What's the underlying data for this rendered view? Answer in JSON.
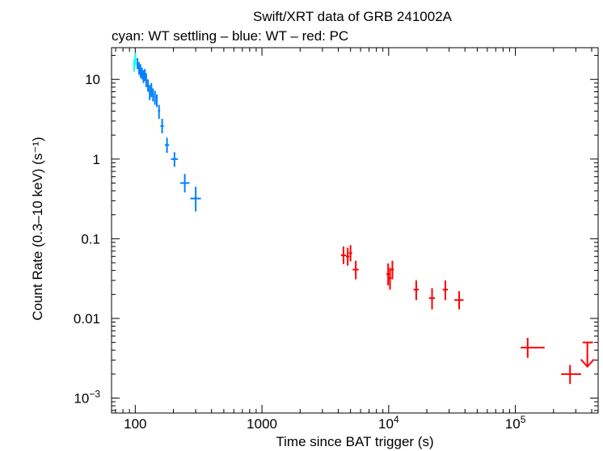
{
  "chart_data": {
    "type": "scatter",
    "title": "Swift/XRT data of GRB 241002A",
    "subtitle": "cyan: WT settling – blue: WT – red: PC",
    "xlabel": "Time since BAT trigger (s)",
    "ylabel": "Count Rate (0.3–10 keV) (s⁻¹)",
    "xscale": "log",
    "yscale": "log",
    "xlim": [
      65,
      450000
    ],
    "ylim": [
      0.00065,
      25
    ],
    "x_ticks": [
      {
        "value": 100,
        "label": "100"
      },
      {
        "value": 1000,
        "label": "1000"
      },
      {
        "value": 10000,
        "label": "10",
        "sup": "4"
      },
      {
        "value": 100000,
        "label": "10",
        "sup": "5"
      }
    ],
    "y_ticks": [
      {
        "value": 10,
        "label": "10"
      },
      {
        "value": 1,
        "label": "1"
      },
      {
        "value": 0.1,
        "label": "0.1"
      },
      {
        "value": 0.01,
        "label": "0.01"
      },
      {
        "value": 0.001,
        "label": "10",
        "sup": "−3"
      }
    ],
    "series": [
      {
        "name": "WT settling",
        "color": "#00ffff",
        "points": [
          {
            "x": 98,
            "y": 15,
            "xerr": [
              1.5,
              1.5
            ],
            "yerr": [
              2.5,
              3
            ]
          },
          {
            "x": 100,
            "y": 18,
            "xerr": [
              1.5,
              1.5
            ],
            "yerr": [
              3,
              3.5
            ]
          }
        ]
      },
      {
        "name": "WT",
        "color": "#0080ff",
        "points": [
          {
            "x": 104,
            "y": 16,
            "xerr": [
              1.5,
              1.5
            ],
            "yerr": [
              2.5,
              2.5
            ]
          },
          {
            "x": 107,
            "y": 14,
            "xerr": [
              1.5,
              1.5
            ],
            "yerr": [
              2.5,
              2.5
            ]
          },
          {
            "x": 110,
            "y": 13,
            "xerr": [
              1.5,
              1.5
            ],
            "yerr": [
              2.5,
              2.5
            ]
          },
          {
            "x": 113,
            "y": 12,
            "xerr": [
              1.5,
              1.5
            ],
            "yerr": [
              2,
              2
            ]
          },
          {
            "x": 116,
            "y": 11,
            "xerr": [
              1.5,
              1.5
            ],
            "yerr": [
              2,
              2
            ]
          },
          {
            "x": 119,
            "y": 11.5,
            "xerr": [
              1.5,
              1.5
            ],
            "yerr": [
              2,
              2
            ]
          },
          {
            "x": 122,
            "y": 10,
            "xerr": [
              1.5,
              1.5
            ],
            "yerr": [
              2,
              2
            ]
          },
          {
            "x": 126,
            "y": 8.5,
            "xerr": [
              2,
              2
            ],
            "yerr": [
              1.5,
              1.5
            ]
          },
          {
            "x": 130,
            "y": 7,
            "xerr": [
              2,
              2
            ],
            "yerr": [
              1.5,
              1.5
            ]
          },
          {
            "x": 134,
            "y": 7.5,
            "xerr": [
              2,
              2
            ],
            "yerr": [
              1.5,
              1.5
            ]
          },
          {
            "x": 138,
            "y": 6.5,
            "xerr": [
              2,
              2
            ],
            "yerr": [
              1.2,
              1.2
            ]
          },
          {
            "x": 143,
            "y": 6,
            "xerr": [
              2,
              2
            ],
            "yerr": [
              1.2,
              1.2
            ]
          },
          {
            "x": 148,
            "y": 5.5,
            "xerr": [
              2.5,
              2.5
            ],
            "yerr": [
              1,
              1
            ]
          },
          {
            "x": 154,
            "y": 4,
            "xerr": [
              3,
              3
            ],
            "yerr": [
              0.8,
              0.8
            ]
          },
          {
            "x": 163,
            "y": 2.6,
            "xerr": [
              5,
              5
            ],
            "yerr": [
              0.5,
              0.6
            ]
          },
          {
            "x": 178,
            "y": 1.5,
            "xerr": [
              7,
              7
            ],
            "yerr": [
              0.3,
              0.35
            ]
          },
          {
            "x": 204,
            "y": 1.0,
            "xerr": [
              13,
              13
            ],
            "yerr": [
              0.2,
              0.22
            ]
          },
          {
            "x": 246,
            "y": 0.5,
            "xerr": [
              20,
              22
            ],
            "yerr": [
              0.12,
              0.15
            ]
          },
          {
            "x": 300,
            "y": 0.32,
            "xerr": [
              28,
              30
            ],
            "yerr": [
              0.1,
              0.13
            ]
          }
        ]
      },
      {
        "name": "PC",
        "color": "#ff0000",
        "points": [
          {
            "x": 4400,
            "y": 0.062,
            "xerr": [
              200,
              200
            ],
            "yerr": [
              0.014,
              0.018
            ]
          },
          {
            "x": 4750,
            "y": 0.06,
            "xerr": [
              150,
              150
            ],
            "yerr": [
              0.014,
              0.017
            ]
          },
          {
            "x": 5000,
            "y": 0.066,
            "xerr": [
              150,
              150
            ],
            "yerr": [
              0.014,
              0.017
            ]
          },
          {
            "x": 5500,
            "y": 0.041,
            "xerr": [
              300,
              300
            ],
            "yerr": [
              0.01,
              0.012
            ]
          },
          {
            "x": 9900,
            "y": 0.036,
            "xerr": [
              300,
              300
            ],
            "yerr": [
              0.01,
              0.013
            ]
          },
          {
            "x": 10250,
            "y": 0.032,
            "xerr": [
              250,
              250
            ],
            "yerr": [
              0.009,
              0.011
            ]
          },
          {
            "x": 10700,
            "y": 0.041,
            "xerr": [
              300,
              300
            ],
            "yerr": [
              0.01,
              0.012
            ]
          },
          {
            "x": 16500,
            "y": 0.023,
            "xerr": [
              800,
              800
            ],
            "yerr": [
              0.006,
              0.007
            ]
          },
          {
            "x": 22000,
            "y": 0.018,
            "xerr": [
              1200,
              1200
            ],
            "yerr": [
              0.005,
              0.006
            ]
          },
          {
            "x": 28000,
            "y": 0.023,
            "xerr": [
              1300,
              1300
            ],
            "yerr": [
              0.006,
              0.007
            ]
          },
          {
            "x": 36000,
            "y": 0.017,
            "xerr": [
              3000,
              3000
            ],
            "yerr": [
              0.004,
              0.005
            ]
          },
          {
            "x": 125000,
            "y": 0.0043,
            "xerr": [
              15000,
              45000
            ],
            "yerr": [
              0.0011,
              0.0014
            ]
          },
          {
            "x": 270000,
            "y": 0.002,
            "xerr": [
              40000,
              60000
            ],
            "yerr": [
              0.0005,
              0.0006
            ]
          }
        ],
        "upper_limits": [
          {
            "x": 370000,
            "y": 0.005,
            "xerr": [
              30000,
              40000
            ]
          }
        ]
      }
    ]
  }
}
